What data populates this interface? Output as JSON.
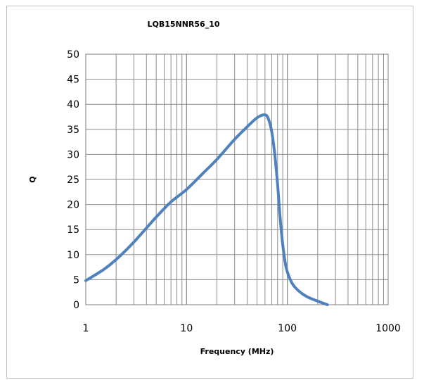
{
  "chart_data": {
    "type": "line",
    "title": "LQB15NNR56_10",
    "xlabel": "Frequency (MHz)",
    "ylabel": "Q",
    "x_scale": "log",
    "xlim": [
      1,
      1000
    ],
    "ylim": [
      0,
      50
    ],
    "x_ticks": [
      "1",
      "10",
      "100",
      "1000"
    ],
    "y_ticks": [
      "0",
      "5",
      "10",
      "15",
      "20",
      "25",
      "30",
      "35",
      "40",
      "45",
      "50"
    ],
    "grid": true,
    "legend": "none",
    "series": [
      {
        "color": "#4f81bd",
        "x": [
          1,
          1.5,
          2,
          3,
          5,
          7,
          10,
          15,
          20,
          30,
          40,
          50,
          60,
          65,
          70,
          75,
          80,
          85,
          90,
          95,
          100,
          110,
          120,
          140,
          160,
          200,
          250
        ],
        "y": [
          4.8,
          7,
          9,
          12.5,
          17.5,
          20.5,
          23,
          26.5,
          29,
          33,
          35.5,
          37.3,
          37.9,
          37,
          34.5,
          30,
          24,
          17,
          12,
          8.5,
          6.5,
          4.5,
          3.4,
          2.2,
          1.5,
          0.7,
          0
        ]
      }
    ]
  }
}
